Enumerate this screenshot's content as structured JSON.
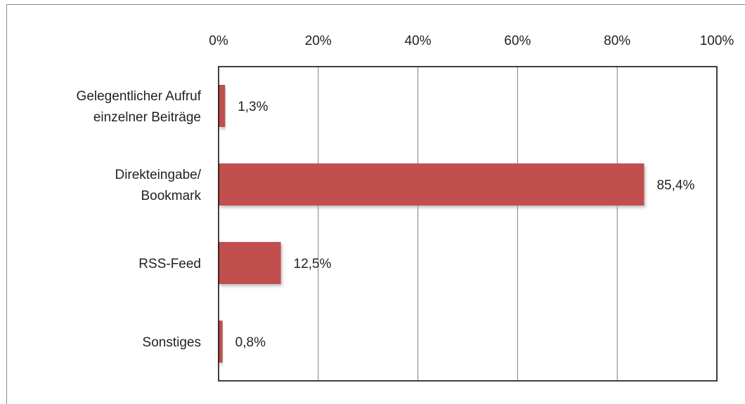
{
  "chart_data": {
    "type": "bar",
    "orientation": "horizontal",
    "categories": [
      [
        "Gelegentlicher Aufruf",
        "einzelner Beiträge"
      ],
      [
        "Direkteingabe/",
        "Bookmark"
      ],
      [
        "RSS-Feed"
      ],
      [
        "Sonstiges"
      ]
    ],
    "values": [
      1.3,
      85.4,
      12.5,
      0.8
    ],
    "data_labels": [
      "1,3%",
      "85,4%",
      "12,5%",
      "0,8%"
    ],
    "x_ticks": [
      0,
      20,
      40,
      60,
      80,
      100
    ],
    "x_tick_labels": [
      "0%",
      "20%",
      "40%",
      "60%",
      "80%",
      "100%"
    ],
    "xlim": [
      0,
      100
    ],
    "x_axis_position": "top",
    "grid": true,
    "legend": "none",
    "title": "",
    "xlabel": "",
    "ylabel": "",
    "colors": {
      "bar": "#c0504d",
      "bar_shadow": "#bdbdbd",
      "grid": "#808080",
      "axis": "#000000",
      "text": "#222222"
    }
  }
}
